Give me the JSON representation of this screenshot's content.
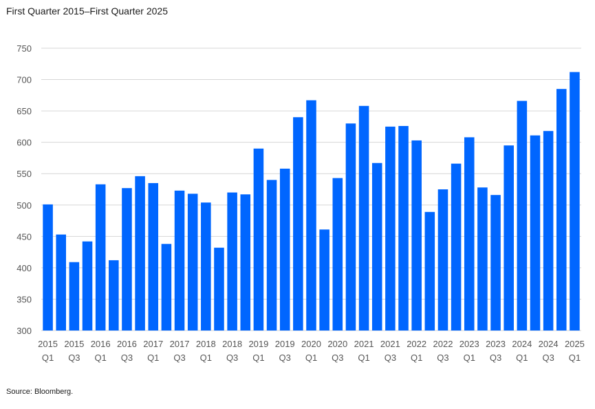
{
  "subtitle": "First Quarter 2015–First Quarter 2025",
  "source": "Source: Bloomberg.",
  "chart_data": {
    "type": "bar",
    "title": "",
    "xlabel": "",
    "ylabel": "",
    "ylim": [
      300,
      750
    ],
    "yticks": [
      300,
      350,
      400,
      450,
      500,
      550,
      600,
      650,
      700,
      750
    ],
    "grid": true,
    "bar_color": "#0066ff",
    "categories": [
      "2015 Q1",
      "2015 Q2",
      "2015 Q3",
      "2015 Q4",
      "2016 Q1",
      "2016 Q2",
      "2016 Q3",
      "2016 Q4",
      "2017 Q1",
      "2017 Q2",
      "2017 Q3",
      "2017 Q4",
      "2018 Q1",
      "2018 Q2",
      "2018 Q3",
      "2018 Q4",
      "2019 Q1",
      "2019 Q2",
      "2019 Q3",
      "2019 Q4",
      "2020 Q1",
      "2020 Q2",
      "2020 Q3",
      "2020 Q4",
      "2021 Q1",
      "2021 Q2",
      "2021 Q3",
      "2021 Q4",
      "2022 Q1",
      "2022 Q2",
      "2022 Q3",
      "2022 Q4",
      "2023 Q1",
      "2023 Q2",
      "2023 Q3",
      "2023 Q4",
      "2024 Q1",
      "2024 Q2",
      "2024 Q3",
      "2024 Q4",
      "2025 Q1"
    ],
    "values": [
      501,
      453,
      409,
      442,
      533,
      412,
      527,
      546,
      535,
      438,
      523,
      518,
      504,
      432,
      520,
      517,
      590,
      540,
      558,
      640,
      667,
      461,
      543,
      630,
      658,
      567,
      625,
      626,
      603,
      489,
      525,
      566,
      608,
      528,
      516,
      595,
      666,
      611,
      618,
      685,
      712
    ],
    "tick_labels": [
      {
        "year": "2015",
        "quarter": "Q1"
      },
      {
        "year": "2015",
        "quarter": "Q3"
      },
      {
        "year": "2016",
        "quarter": "Q1"
      },
      {
        "year": "2016",
        "quarter": "Q3"
      },
      {
        "year": "2017",
        "quarter": "Q1"
      },
      {
        "year": "2017",
        "quarter": "Q3"
      },
      {
        "year": "2018",
        "quarter": "Q1"
      },
      {
        "year": "2018",
        "quarter": "Q3"
      },
      {
        "year": "2019",
        "quarter": "Q1"
      },
      {
        "year": "2019",
        "quarter": "Q3"
      },
      {
        "year": "2020",
        "quarter": "Q1"
      },
      {
        "year": "2020",
        "quarter": "Q3"
      },
      {
        "year": "2021",
        "quarter": "Q1"
      },
      {
        "year": "2021",
        "quarter": "Q3"
      },
      {
        "year": "2022",
        "quarter": "Q1"
      },
      {
        "year": "2022",
        "quarter": "Q3"
      },
      {
        "year": "2023",
        "quarter": "Q1"
      },
      {
        "year": "2023",
        "quarter": "Q3"
      },
      {
        "year": "2024",
        "quarter": "Q1"
      },
      {
        "year": "2024",
        "quarter": "Q3"
      },
      {
        "year": "2025",
        "quarter": "Q1"
      }
    ]
  }
}
